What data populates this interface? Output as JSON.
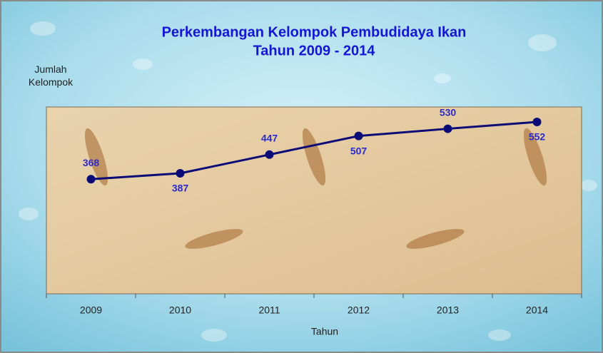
{
  "chart_data": {
    "type": "line",
    "title": "Perkembangan Kelompok Pembudidaya Ikan",
    "subtitle": "Tahun 2009 - 2014",
    "y_label": "Jumlah Kelompok",
    "x_label": "Tahun",
    "categories": [
      "2009",
      "2010",
      "2011",
      "2012",
      "2013",
      "2014"
    ],
    "values": [
      368,
      387,
      447,
      507,
      530,
      552
    ],
    "color": "#0b0b78",
    "label_color": "#2a2ad0",
    "ylim": [
      0,
      600
    ]
  }
}
